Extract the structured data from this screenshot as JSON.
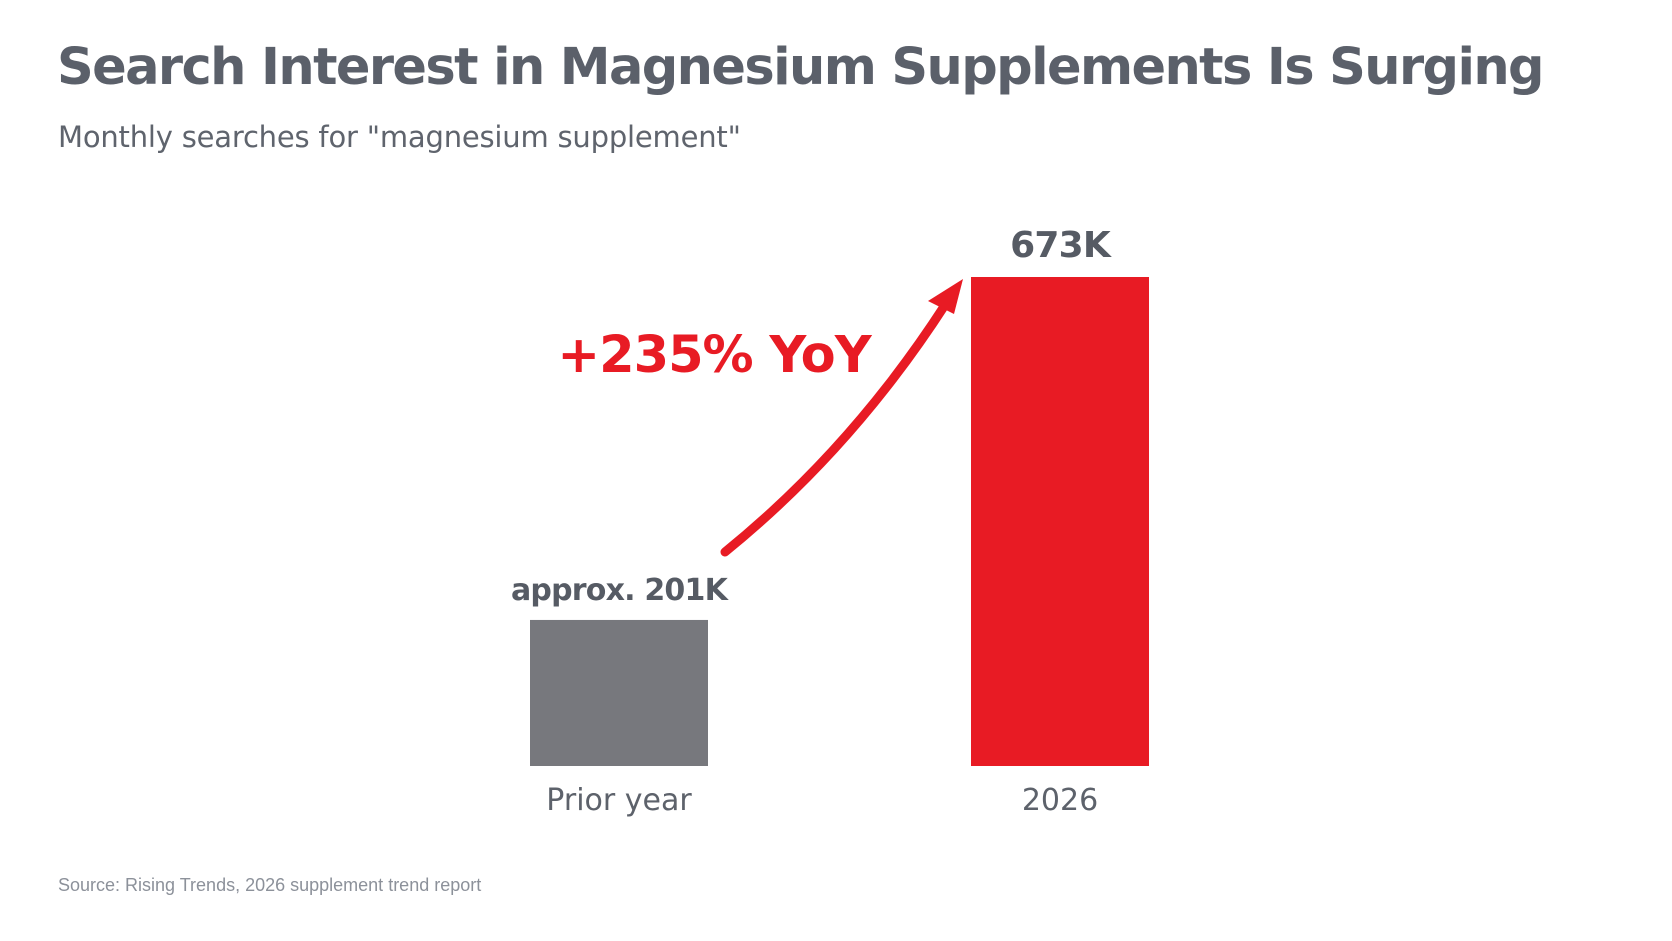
{
  "colors": {
    "prior": "#77787d",
    "current": "#e81b24",
    "accent": "#e81b24"
  },
  "chart_data": {
    "type": "bar",
    "title": "Search Interest in Magnesium Supplements Is Surging",
    "subtitle": "Monthly searches for \"magnesium supplement\"",
    "categories": [
      "Prior year",
      "2026"
    ],
    "values": [
      201,
      673
    ],
    "value_labels": [
      "approx. 201K",
      "673K"
    ],
    "annotation": "+235% YoY",
    "ylim": [
      0,
      673
    ],
    "grid": false,
    "source": "Source: Rising Trends, 2026 supplement trend report"
  }
}
